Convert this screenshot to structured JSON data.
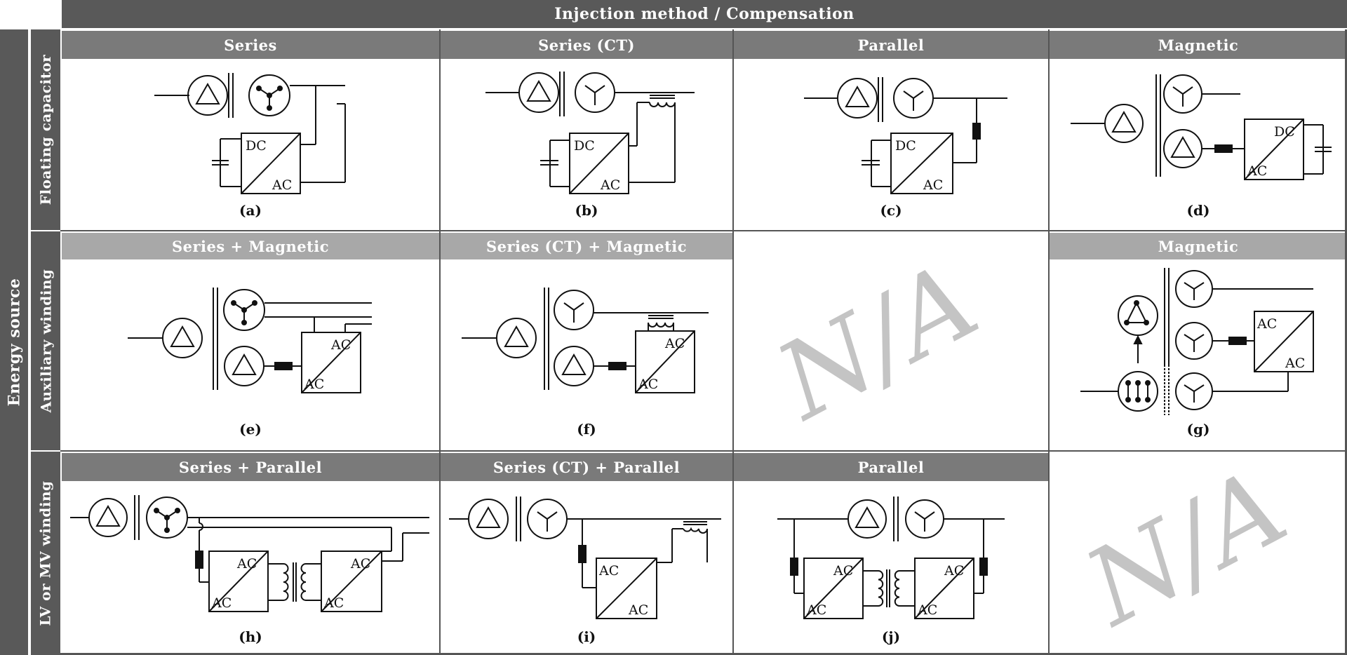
{
  "top_header": "Injection method / Compensation",
  "side_header": "Energy source",
  "rows": [
    "Floating capacitor",
    "Auxiliary winding",
    "LV or MV winding"
  ],
  "col_headers": {
    "r1": [
      "Series",
      "Series (CT)",
      "Parallel",
      "Magnetic"
    ],
    "r2": [
      "Series + Magnetic",
      "Series (CT) + Magnetic",
      "Magnetic"
    ],
    "r3": [
      "Series + Parallel",
      "Series (CT) + Parallel",
      "Parallel"
    ]
  },
  "captions": [
    "(a)",
    "(b)",
    "(c)",
    "(d)",
    "(e)",
    "(f)",
    "(g)",
    "(h)",
    "(i)",
    "(j)"
  ],
  "na_text": "N/A",
  "converter_labels": {
    "dc": "DC",
    "ac": "AC"
  },
  "colors": {
    "header_dark": "#595959",
    "header_mid": "#7a7a7a",
    "header_light": "#a8a8a8",
    "na": "#c4c4c4"
  }
}
